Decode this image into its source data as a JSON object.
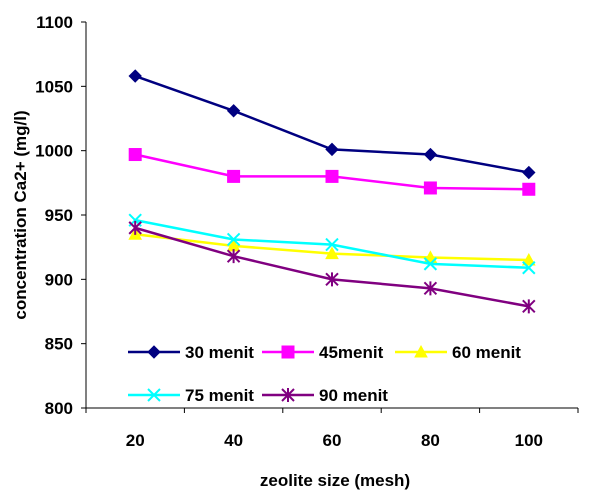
{
  "chart_data": {
    "type": "line",
    "title": "",
    "xlabel": "zeolite size (mesh)",
    "ylabel": "concentration Ca2+ (mg/l)",
    "x": [
      20,
      40,
      60,
      80,
      100
    ],
    "xlim": [
      10,
      110
    ],
    "ylim": [
      800,
      1100
    ],
    "yticks": [
      800,
      850,
      900,
      950,
      1000,
      1050,
      1100
    ],
    "xticks": [
      20,
      40,
      60,
      80,
      100
    ],
    "grid": false,
    "legend_placement": "bottom-inside",
    "series": [
      {
        "name": "30 menit",
        "values": [
          1058,
          1031,
          1001,
          997,
          983
        ],
        "color": "#000080",
        "marker": "diamond"
      },
      {
        "name": "45menit",
        "values": [
          997,
          980,
          980,
          971,
          970
        ],
        "color": "#FF00FF",
        "marker": "square"
      },
      {
        "name": "60 menit",
        "values": [
          935,
          926,
          920,
          917,
          915
        ],
        "color": "#FFFF00",
        "marker": "triangle"
      },
      {
        "name": "75 menit",
        "values": [
          946,
          931,
          927,
          912,
          909
        ],
        "color": "#00FFFF",
        "marker": "x"
      },
      {
        "name": "90 menit",
        "values": [
          940,
          918,
          900,
          893,
          879
        ],
        "color": "#800080",
        "marker": "star"
      }
    ]
  }
}
